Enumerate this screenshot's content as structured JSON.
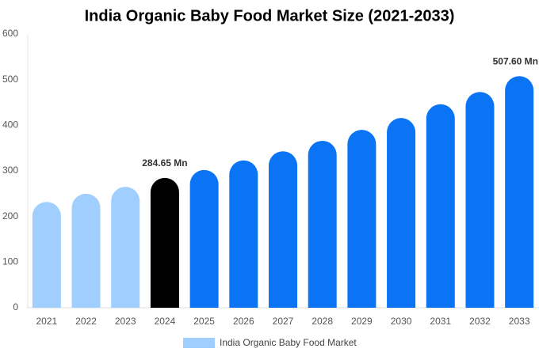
{
  "chart_data": {
    "type": "bar",
    "title": "India Organic Baby Food Market Size (2021-2033)",
    "categories": [
      "2021",
      "2022",
      "2023",
      "2024",
      "2025",
      "2026",
      "2027",
      "2028",
      "2029",
      "2030",
      "2031",
      "2032",
      "2033"
    ],
    "series": [
      {
        "name": "India Organic Baby Food Market",
        "color": "#a0cfff",
        "values": [
          232,
          250,
          265,
          284.65,
          302,
          323,
          343,
          366,
          390,
          416,
          446,
          473,
          507.6
        ],
        "value_labels": [
          null,
          null,
          null,
          "284.65 Mn",
          null,
          null,
          null,
          null,
          null,
          null,
          null,
          null,
          "507.60 Mn"
        ],
        "colors": [
          "#a0cfff",
          "#a0cfff",
          "#a0cfff",
          "#000000",
          "#0a74f5",
          "#0a74f5",
          "#0a74f5",
          "#0a74f5",
          "#0a74f5",
          "#0a74f5",
          "#0a74f5",
          "#0a74f5",
          "#0a74f5"
        ]
      }
    ],
    "ylim": [
      0,
      600
    ],
    "yticks": [
      0,
      100,
      200,
      300,
      400,
      500,
      600
    ],
    "grid": false,
    "legend": "bottom"
  }
}
